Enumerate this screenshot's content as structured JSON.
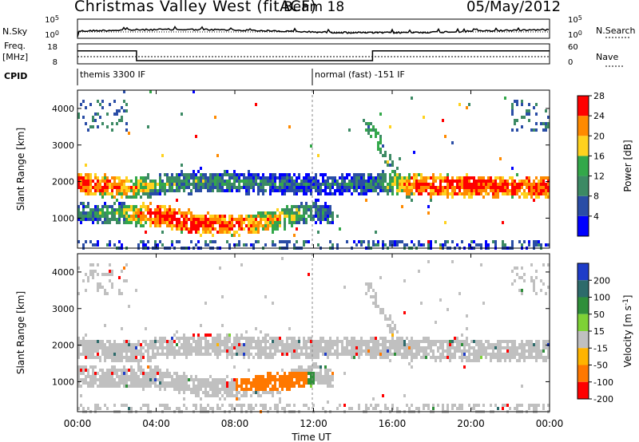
{
  "header": {
    "title": "Christmas Valley West (fitACF)",
    "beam": "Beam 18",
    "date": "05/May/2012"
  },
  "top_panels": {
    "nsky_label": "N.Sky",
    "nsearch_label": "N.Search",
    "freq_label": "Freq.",
    "freq_unit": "[MHz]",
    "nave_label": "Nave",
    "cpid_label": "CPID",
    "nsky_ticks": [
      "10^5",
      "10^0"
    ],
    "nsearch_ticks": [
      "10^5",
      "10^0"
    ],
    "freq_ticks": [
      "18",
      "8"
    ],
    "nave_ticks": [
      "60",
      "0"
    ],
    "cpid_entries": [
      "themis 3300 IF",
      "normal (fast) -151 IF"
    ],
    "freq_profile": [
      [
        0,
        14.5
      ],
      [
        3,
        14.5
      ],
      [
        3,
        9.6
      ],
      [
        15,
        9.6
      ],
      [
        15,
        14.5
      ],
      [
        24,
        14.5
      ]
    ]
  },
  "chart_data": [
    {
      "type": "heatmap",
      "title": "Power",
      "ylabel": "Slant Range [km]",
      "xlabel": "Time UT",
      "xlim": [
        0,
        24
      ],
      "ylim": [
        180,
        4500
      ],
      "x_ticks": [
        "00:00",
        "04:00",
        "08:00",
        "12:00",
        "16:00",
        "20:00",
        "00:00"
      ],
      "y_ticks": [
        1000,
        2000,
        3000,
        4000
      ],
      "colorbar": {
        "label": "Power [dB]",
        "ticks": [
          4,
          8,
          12,
          16,
          20,
          24,
          28
        ],
        "colors": [
          "#0000ff",
          "#2a4da6",
          "#3c8a64",
          "#33a84a",
          "#ffd21e",
          "#ff8a00",
          "#ff0000"
        ]
      },
      "features": [
        {
          "name": "upper band",
          "points": [
            [
              0,
              2000,
              28
            ],
            [
              3,
              1850,
              20
            ],
            [
              4,
              1950,
              14
            ],
            [
              6,
              2050,
              12
            ],
            [
              9,
              2000,
              10
            ],
            [
              12,
              1950,
              8
            ],
            [
              15,
              2000,
              10
            ],
            [
              17,
              1950,
              26
            ],
            [
              20,
              1900,
              28
            ],
            [
              24,
              1900,
              26
            ]
          ]
        },
        {
          "name": "lower band",
          "points": [
            [
              0,
              1200,
              10
            ],
            [
              2,
              1150,
              14
            ],
            [
              4,
              1150,
              28
            ],
            [
              6,
              900,
              28
            ],
            [
              8,
              850,
              26
            ],
            [
              10,
              1000,
              20
            ],
            [
              12,
              1250,
              12
            ],
            [
              13,
              1100,
              8
            ]
          ]
        }
      ]
    },
    {
      "type": "heatmap",
      "title": "Velocity",
      "ylabel": "Slant Range [km]",
      "xlabel": "Time UT",
      "xlim": [
        0,
        24
      ],
      "ylim": [
        180,
        4500
      ],
      "x_ticks": [
        "00:00",
        "04:00",
        "08:00",
        "12:00",
        "16:00",
        "20:00",
        "00:00"
      ],
      "y_ticks": [
        1000,
        2000,
        3000,
        4000
      ],
      "colorbar": {
        "label": "Velocity [m s^-1]",
        "ticks": [
          200,
          100,
          50,
          15,
          -15,
          -50,
          -100,
          -200
        ],
        "colors": [
          "#1e3cc8",
          "#2d6b6b",
          "#2f8f3a",
          "#7ed236",
          "#c0c0c0",
          "#ffb400",
          "#ff7800",
          "#ff0000"
        ]
      },
      "features": [
        {
          "name": "ground scatter band",
          "velocity": 0
        },
        {
          "name": "orange patch",
          "x": [
            8,
            11.6
          ],
          "y": [
            800,
            1300
          ],
          "velocity": -50
        },
        {
          "name": "green patch",
          "x": [
            11.6,
            12
          ],
          "y": [
            800,
            1300
          ],
          "velocity": 40
        },
        {
          "name": "red patch",
          "x": [
            5.5,
            7
          ],
          "y": [
            2250,
            2550
          ],
          "velocity": -180
        }
      ]
    }
  ]
}
